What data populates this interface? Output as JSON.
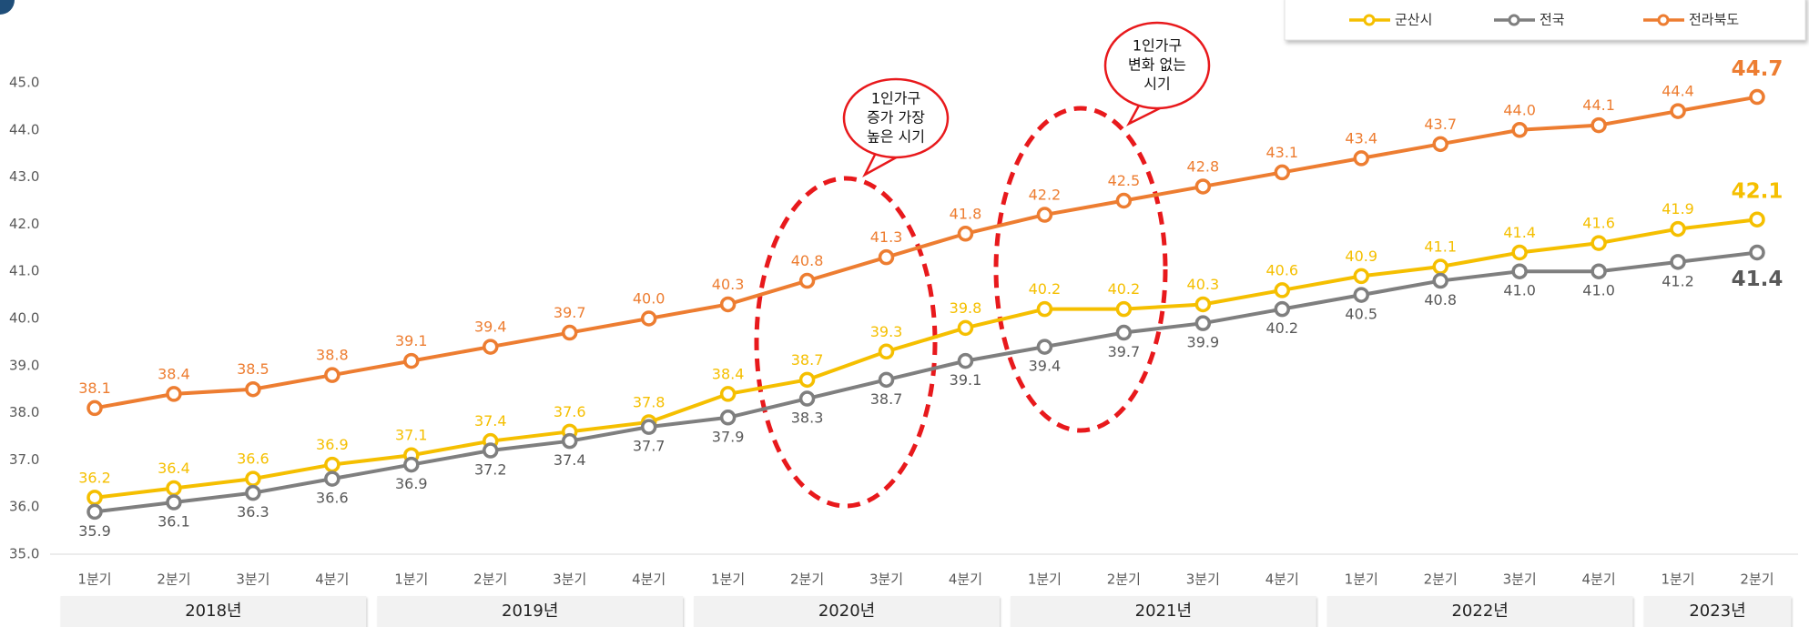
{
  "chart_data": {
    "type": "line",
    "years": [
      {
        "label": "2018년",
        "quarters": [
          "1분기",
          "2분기",
          "3분기",
          "4분기"
        ]
      },
      {
        "label": "2019년",
        "quarters": [
          "1분기",
          "2분기",
          "3분기",
          "4분기"
        ]
      },
      {
        "label": "2020년",
        "quarters": [
          "1분기",
          "2분기",
          "3분기",
          "4분기"
        ]
      },
      {
        "label": "2021년",
        "quarters": [
          "1분기",
          "2분기",
          "3분기",
          "4분기"
        ]
      },
      {
        "label": "2022년",
        "quarters": [
          "1분기",
          "2분기",
          "3분기",
          "4분기"
        ]
      },
      {
        "label": "2023년",
        "quarters": [
          "1분기",
          "2분기"
        ]
      }
    ],
    "ylim": [
      35,
      45
    ],
    "yticks": [
      {
        "value": 35,
        "label": "35.0"
      },
      {
        "value": 36,
        "label": "36.0"
      },
      {
        "value": 37,
        "label": "37.0"
      },
      {
        "value": 38,
        "label": "38.0"
      },
      {
        "value": 39,
        "label": "39.0"
      },
      {
        "value": 40,
        "label": "40.0"
      },
      {
        "value": 41,
        "label": "41.0"
      },
      {
        "value": 42,
        "label": "42.0"
      },
      {
        "value": 43,
        "label": "43.0"
      },
      {
        "value": 44,
        "label": "44.0"
      },
      {
        "value": 45,
        "label": "45.0"
      }
    ],
    "legend": "top-right",
    "series": [
      {
        "name": "군산시",
        "color": "#f5bf00",
        "label_side": "above",
        "values": [
          36.2,
          36.4,
          36.6,
          36.9,
          37.1,
          37.4,
          37.6,
          37.8,
          38.4,
          38.7,
          39.3,
          39.8,
          40.2,
          40.2,
          40.3,
          40.6,
          40.9,
          41.1,
          41.4,
          41.6,
          41.9,
          42.1
        ],
        "value_labels": [
          "36.2",
          "36.4",
          "36.6",
          "36.9",
          "37.1",
          "37.4",
          "37.6",
          "37.8",
          "38.4",
          "38.7",
          "39.3",
          "39.8",
          "40.2",
          "40.2",
          "40.3",
          "40.6",
          "40.9",
          "41.1",
          "41.4",
          "41.6",
          "41.9",
          "42.1"
        ]
      },
      {
        "name": "전국",
        "color": "#7f7f7f",
        "label_side": "below",
        "values": [
          35.9,
          36.1,
          36.3,
          36.6,
          36.9,
          37.2,
          37.4,
          37.7,
          37.9,
          38.3,
          38.7,
          39.1,
          39.4,
          39.7,
          39.9,
          40.2,
          40.5,
          40.8,
          41.0,
          41.0,
          41.2,
          41.4
        ],
        "value_labels": [
          "35.9",
          "36.1",
          "36.3",
          "36.6",
          "36.9",
          "37.2",
          "37.4",
          "37.7",
          "37.9",
          "38.3",
          "38.7",
          "39.1",
          "39.4",
          "39.7",
          "39.9",
          "40.2",
          "40.5",
          "40.8",
          "41.0",
          "41.0",
          "41.2",
          "41.4"
        ]
      },
      {
        "name": "전라북도",
        "color": "#ed7d31",
        "label_side": "above",
        "values": [
          38.1,
          38.4,
          38.5,
          38.8,
          39.1,
          39.4,
          39.7,
          40.0,
          40.3,
          40.8,
          41.3,
          41.8,
          42.2,
          42.5,
          42.8,
          43.1,
          43.4,
          43.7,
          44.0,
          44.1,
          44.4,
          44.7
        ],
        "value_labels": [
          "38.1",
          "38.4",
          "38.5",
          "38.8",
          "39.1",
          "39.4",
          "39.7",
          "40.0",
          "40.3",
          "40.8",
          "41.3",
          "41.8",
          "42.2",
          "42.5",
          "42.8",
          "43.1",
          "43.4",
          "43.7",
          "44.0",
          "44.1",
          "44.4",
          "44.7"
        ]
      }
    ],
    "annotations": [
      {
        "lines": [
          "1인가구",
          "증가 가장",
          "높은 시기"
        ]
      },
      {
        "lines": [
          "1인가구",
          "변화 없는",
          "시기"
        ]
      }
    ]
  }
}
